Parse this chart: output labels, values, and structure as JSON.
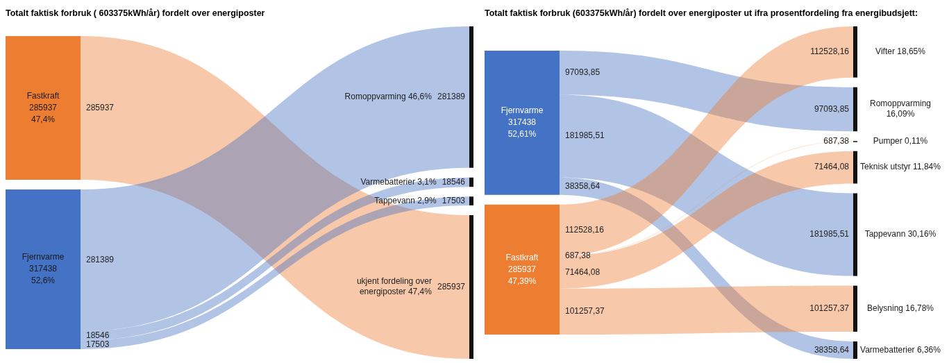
{
  "chart_data": [
    {
      "type": "other",
      "title": "Totalt faktisk forbruk ( 603375kWh/år)  fordelt over energiposter",
      "categories": [
        "Romoppvarming 46,6%",
        "Varmebatterier 3,1%",
        "Tappevann 2,9%",
        "ukjent fordeling over energiposter 47,4%"
      ],
      "series": [
        {
          "name": "Fastkraft",
          "color": "#ed7d31",
          "values": [
            null,
            null,
            null,
            285937
          ],
          "value_labels": [
            null,
            null,
            null,
            "285937"
          ]
        },
        {
          "name": "Fjernvarme",
          "color": "#4472c4",
          "values": [
            281389,
            18546,
            17503,
            null
          ],
          "value_labels": [
            "281389",
            "18546",
            "17503",
            null
          ]
        }
      ],
      "annotations": [
        "285937",
        "47,4%",
        "317438",
        "52,6%"
      ]
    },
    {
      "type": "other",
      "title": "Totalt faktisk forbruk (603375kWh/år)  fordelt over energiposter ut ifra prosentfordeling fra energibudsjett:",
      "categories": [
        "Vifter 18,65%",
        "Romoppvarming 16,09%",
        "Pumper 0,11%",
        "Teknisk utstyr 11,84%",
        "Tappevann 30,16%",
        "Belysning 16,78%",
        "Varmebatterier 6,36%"
      ],
      "series": [
        {
          "name": "Fjernvarme",
          "color": "#4472c4",
          "values": [
            null,
            97093.85,
            null,
            null,
            181985.51,
            null,
            38358.64
          ],
          "value_labels": [
            null,
            "97093,85",
            null,
            null,
            "181985,51",
            null,
            "38358,64"
          ]
        },
        {
          "name": "Fastkraft",
          "color": "#ed7d31",
          "values": [
            112528.16,
            null,
            687.38,
            71464.08,
            null,
            101257.37,
            null
          ],
          "value_labels": [
            "112528,16",
            null,
            "687,38",
            "71464,08",
            null,
            "101257,37",
            null
          ]
        }
      ],
      "annotations": [
        "317438",
        "52,61%",
        "285937",
        "47,39%"
      ]
    }
  ]
}
